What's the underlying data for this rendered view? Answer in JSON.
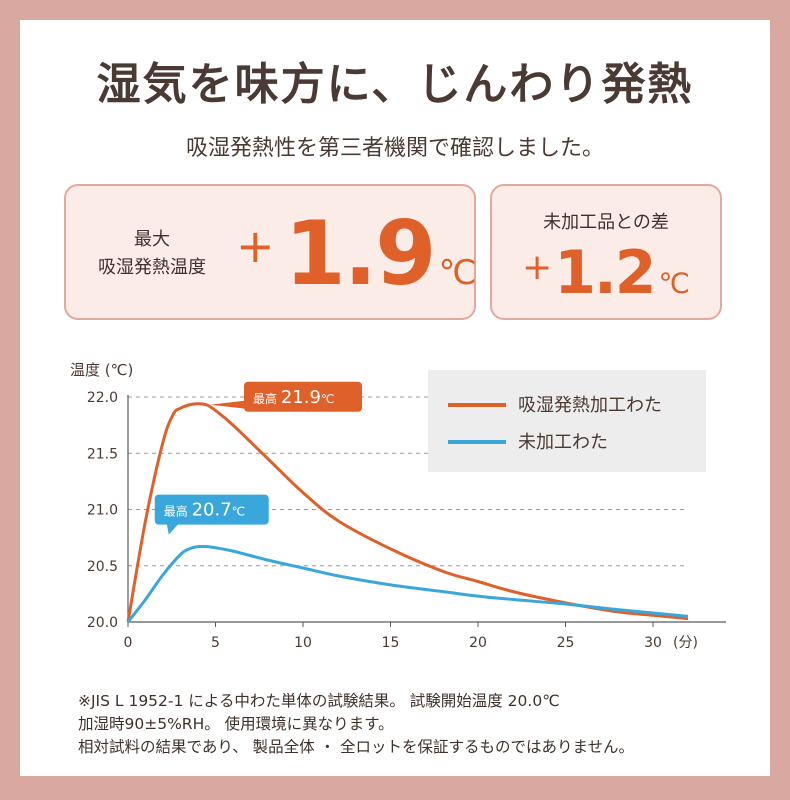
{
  "title": "湿気を味方に、じんわり発熱",
  "subtitle": "吸湿発熱性を第三者機関で確認しました。",
  "card_max": {
    "label_line1": "最大",
    "label_line2": "吸湿発熱温度",
    "sign": "+",
    "value": "1.9",
    "unit": "℃"
  },
  "card_diff": {
    "label": "未加工品との差",
    "sign": "+",
    "value": "1.2",
    "unit": "℃"
  },
  "chart_data": {
    "type": "line",
    "ylabel": "温度 (℃)",
    "xunit_label": "(分)",
    "xlim": [
      0,
      32
    ],
    "ylim": [
      20.0,
      22.0
    ],
    "xticks": [
      0,
      5,
      10,
      15,
      20,
      25,
      30
    ],
    "yticks": [
      "20.0",
      "20.5",
      "21.0",
      "21.5",
      "22.0"
    ],
    "grid": "horizontal dashed",
    "legend_position": "top-right",
    "series": [
      {
        "name": "吸湿発熱加工わた",
        "color": "#e0602a",
        "x": [
          0,
          1,
          2,
          2.6,
          3,
          3.5,
          4,
          4.5,
          5,
          6,
          8,
          10,
          12,
          15,
          18,
          20,
          22,
          25,
          28,
          30,
          32
        ],
        "y": [
          20.0,
          20.9,
          21.6,
          21.85,
          21.9,
          21.93,
          21.94,
          21.93,
          21.88,
          21.75,
          21.45,
          21.15,
          20.9,
          20.65,
          20.45,
          20.36,
          20.27,
          20.17,
          20.09,
          20.06,
          20.03
        ]
      },
      {
        "name": "未加工わた",
        "color": "#3aa7dc",
        "x": [
          0,
          1,
          2,
          3,
          3.5,
          4,
          4.5,
          5,
          6,
          8,
          10,
          12,
          15,
          18,
          20,
          22,
          25,
          28,
          30,
          32
        ],
        "y": [
          20.0,
          20.2,
          20.42,
          20.6,
          20.65,
          20.67,
          20.67,
          20.66,
          20.63,
          20.55,
          20.48,
          20.41,
          20.33,
          20.27,
          20.23,
          20.2,
          20.16,
          20.11,
          20.08,
          20.05
        ]
      }
    ],
    "annotations": [
      {
        "series": 0,
        "x": 4,
        "prefix": "最高",
        "value": "21.9",
        "unit": "℃",
        "color": "#e0602a"
      },
      {
        "series": 1,
        "x": 4.5,
        "prefix": "最高",
        "value": "20.7",
        "unit": "℃",
        "color": "#3aa7dc"
      }
    ]
  },
  "note": {
    "line1": "※JIS L 1952-1 による中わた単体の試験結果。 試験開始温度 20.0℃",
    "line2": "加湿時90±5%RH。 使用環境に異なります。",
    "line3": "相対試料の結果であり、 製品全体 ・ 全ロットを保証するものではありません。"
  }
}
